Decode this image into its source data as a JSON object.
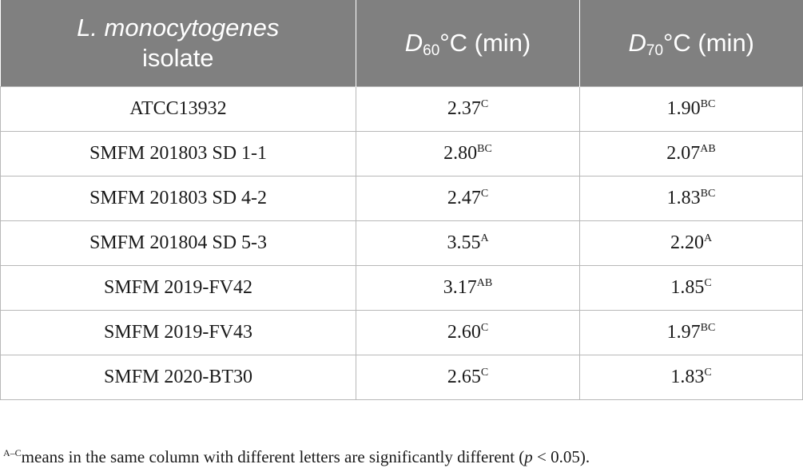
{
  "table": {
    "headers": {
      "isolate_italic": "L. monocytogenes",
      "isolate_rest": "isolate",
      "d60_letter": "D",
      "d60_sub": "60",
      "d60_unit": "°C (min)",
      "d70_letter": "D",
      "d70_sub": "70",
      "d70_unit": "°C (min)"
    },
    "rows": [
      {
        "isolate": "ATCC13932",
        "d60": "2.37",
        "d60_sig": "C",
        "d70": "1.90",
        "d70_sig": "BC"
      },
      {
        "isolate": "SMFM 201803 SD 1-1",
        "d60": "2.80",
        "d60_sig": "BC",
        "d70": "2.07",
        "d70_sig": "AB"
      },
      {
        "isolate": "SMFM 201803 SD 4-2",
        "d60": "2.47",
        "d60_sig": "C",
        "d70": "1.83",
        "d70_sig": "BC"
      },
      {
        "isolate": "SMFM 201804 SD 5-3",
        "d60": "3.55",
        "d60_sig": "A",
        "d70": "2.20",
        "d70_sig": "A"
      },
      {
        "isolate": "SMFM 2019-FV42",
        "d60": "3.17",
        "d60_sig": "AB",
        "d70": "1.85",
        "d70_sig": "C"
      },
      {
        "isolate": "SMFM 2019-FV43",
        "d60": "2.60",
        "d60_sig": "C",
        "d70": "1.97",
        "d70_sig": "BC"
      },
      {
        "isolate": "SMFM 2020-BT30",
        "d60": "2.65",
        "d60_sig": "C",
        "d70": "1.83",
        "d70_sig": "C"
      }
    ]
  },
  "footnote": {
    "sup": "A–C",
    "text_before": "means in the same column with different letters are significantly different (",
    "p": "p",
    "text_after": " < 0.05)."
  }
}
